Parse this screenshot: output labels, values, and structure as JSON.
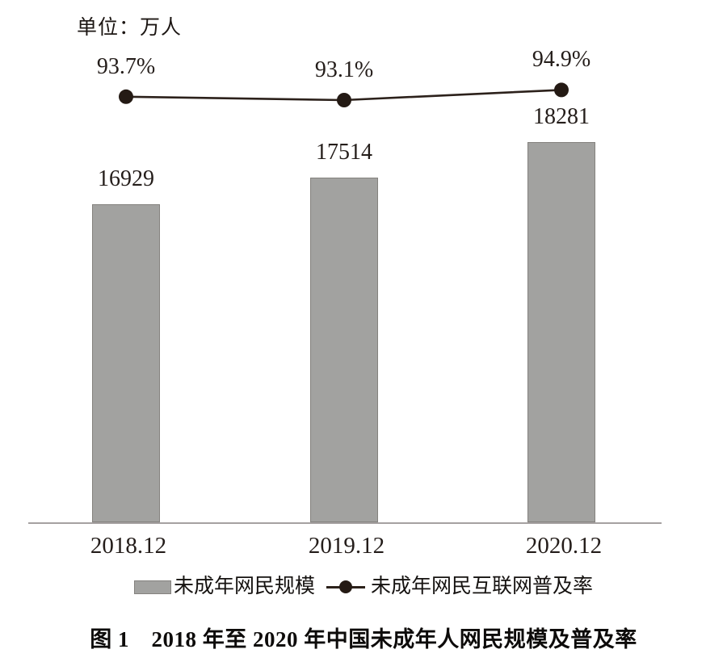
{
  "unit_label": "单位：万人",
  "chart_data": {
    "type": "combo",
    "title": "图 1　2018 年至 2020 年中国未成年人网民规模及普及率",
    "categories": [
      "2018.12",
      "2019.12",
      "2020.12"
    ],
    "series": [
      {
        "name": "未成年网民规模",
        "type": "bar",
        "unit": "万人",
        "values": [
          16929,
          17514,
          18281
        ],
        "value_labels": [
          "16929",
          "17514",
          "18281"
        ],
        "color": "#a2a2a0"
      },
      {
        "name": "未成年网民互联网普及率",
        "type": "line",
        "unit": "%",
        "values": [
          93.7,
          93.1,
          94.9
        ],
        "value_labels": [
          "93.7%",
          "93.1%",
          "94.9%"
        ],
        "color": "#2c211b"
      }
    ],
    "ylabel": "单位：万人",
    "bar_axis_implied_range": [
      10000,
      18800
    ],
    "grid": false,
    "legend_position": "bottom"
  },
  "legend": {
    "bar_label": "未成年网民规模",
    "line_label": "未成年网民互联网普及率"
  },
  "caption": "图 1　2018 年至 2020 年中国未成年人网民规模及普及率",
  "colors": {
    "bar_fill": "#a2a2a0",
    "bar_border": "#84827e",
    "line": "#2c211b",
    "dot": "#241a14",
    "axis": "#a5a1a1",
    "text": "#221b18"
  }
}
